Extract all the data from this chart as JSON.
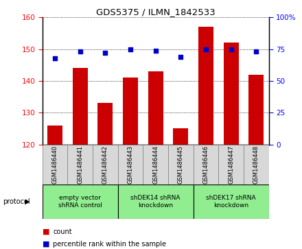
{
  "title": "GDS5375 / ILMN_1842533",
  "samples": [
    "GSM1486440",
    "GSM1486441",
    "GSM1486442",
    "GSM1486443",
    "GSM1486444",
    "GSM1486445",
    "GSM1486446",
    "GSM1486447",
    "GSM1486448"
  ],
  "counts": [
    126,
    144,
    133,
    141,
    143,
    125,
    157,
    152,
    142
  ],
  "percentiles": [
    68,
    73,
    72,
    75,
    74,
    69,
    75,
    75,
    73
  ],
  "groups": [
    {
      "label": "empty vector\nshRNA control",
      "start": 0,
      "end": 3,
      "color": "#90ee90"
    },
    {
      "label": "shDEK14 shRNA\nknockdown",
      "start": 3,
      "end": 6,
      "color": "#90ee90"
    },
    {
      "label": "shDEK17 shRNA\nknockdown",
      "start": 6,
      "end": 9,
      "color": "#90ee90"
    }
  ],
  "ylim_left": [
    120,
    160
  ],
  "ylim_right": [
    0,
    100
  ],
  "yticks_left": [
    120,
    130,
    140,
    150,
    160
  ],
  "yticks_right": [
    0,
    25,
    50,
    75,
    100
  ],
  "bar_color": "#cc0000",
  "dot_color": "#0000cc",
  "bar_width": 0.6,
  "bar_bottom": 120,
  "protocol_label": "protocol"
}
